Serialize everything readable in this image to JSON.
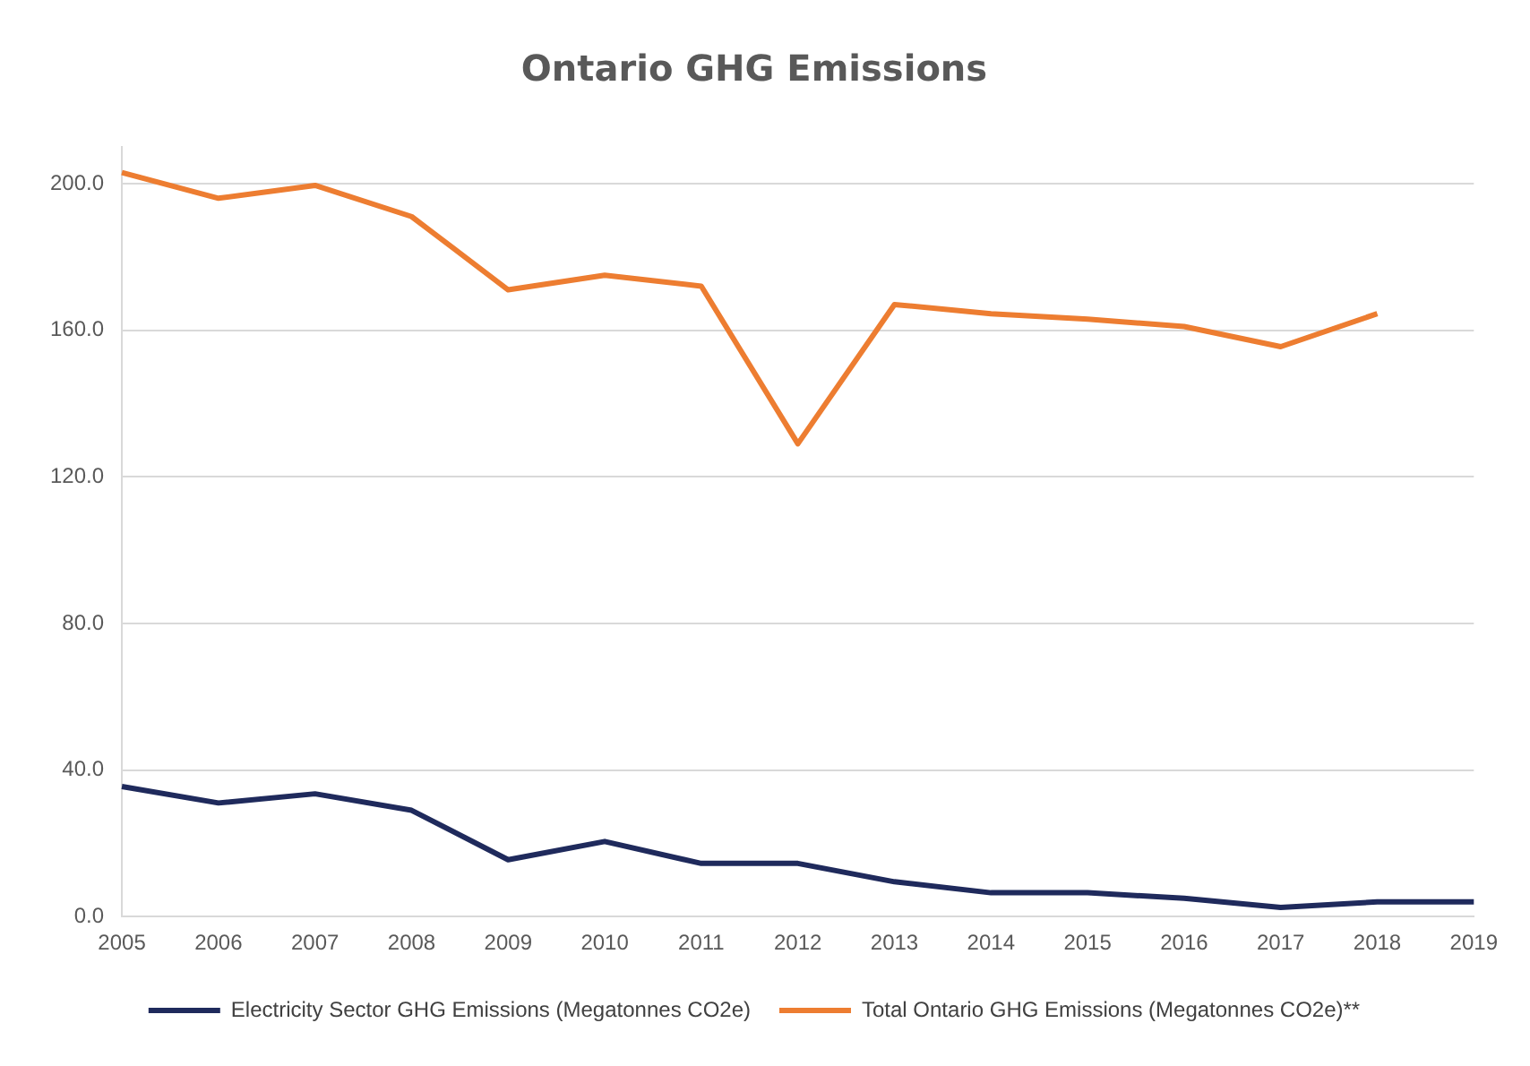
{
  "chart_data": {
    "type": "line",
    "title": "Ontario GHG Emissions",
    "categories": [
      "2005",
      "2006",
      "2007",
      "2008",
      "2009",
      "2010",
      "2011",
      "2012",
      "2013",
      "2014",
      "2015",
      "2016",
      "2017",
      "2018",
      "2019"
    ],
    "series": [
      {
        "name": "Electricity Sector GHG Emissions (Megatonnes CO2e)",
        "color": "#1f2a5c",
        "values": [
          35.5,
          31,
          33.5,
          29,
          15.5,
          20.5,
          14.5,
          14.5,
          9.5,
          6.5,
          6.5,
          5,
          2.5,
          4,
          4
        ]
      },
      {
        "name": "Total Ontario GHG Emissions (Megatonnes CO2e)**",
        "color": "#ed7d31",
        "values": [
          203,
          196,
          199.5,
          191,
          171,
          175,
          172,
          129,
          167,
          164.5,
          163,
          161,
          155.5,
          164.5,
          null
        ]
      }
    ],
    "ylim": [
      0,
      210
    ],
    "yticks": [
      {
        "value": 0,
        "label": "0.0"
      },
      {
        "value": 40,
        "label": "40.0"
      },
      {
        "value": 80,
        "label": "80.0"
      },
      {
        "value": 120,
        "label": "120.0"
      },
      {
        "value": 160,
        "label": "160.0"
      },
      {
        "value": 200,
        "label": "200.0"
      }
    ],
    "grid": "y",
    "legend": "bottom",
    "marker": "none",
    "line_style": "solid"
  }
}
